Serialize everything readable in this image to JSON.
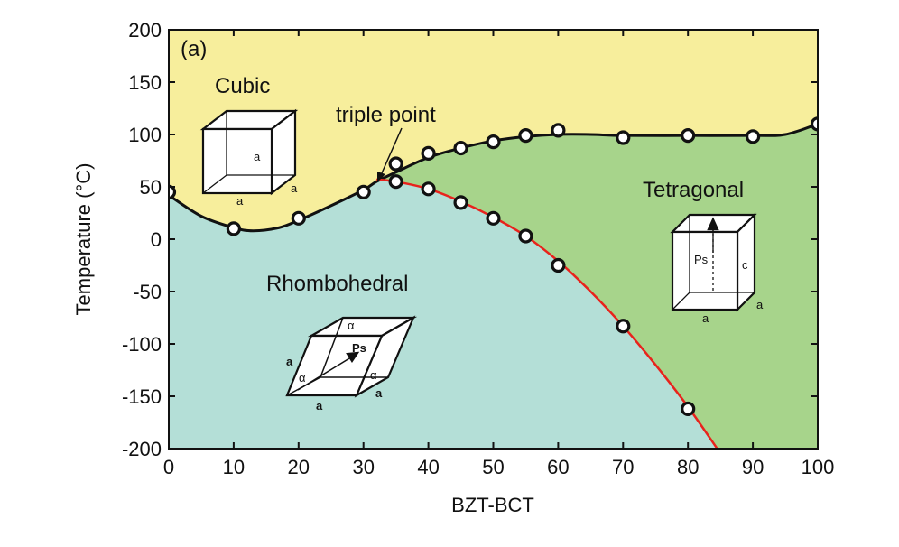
{
  "chart_data": {
    "type": "line",
    "panel_label": "(a)",
    "xlabel": "BZT-BCT",
    "ylabel": "Temperature (°C)",
    "xlim": [
      0,
      100
    ],
    "ylim": [
      -200,
      200
    ],
    "xticks": [
      0,
      10,
      20,
      30,
      40,
      50,
      60,
      70,
      80,
      90,
      100
    ],
    "yticks": [
      200,
      150,
      100,
      50,
      0,
      -50,
      -100,
      -150,
      -200
    ],
    "grid": false,
    "colors": {
      "cubic": "#f7ee9c",
      "rhombohedral": "#b4dfd7",
      "tetragonal": "#a7d48b",
      "cubic_boundary": "#111111",
      "rt_boundary": "#e8231c"
    },
    "regions": [
      {
        "name": "Cubic",
        "cell": {
          "edge_labels": [
            "a",
            "a",
            "a"
          ]
        }
      },
      {
        "name": "Rhombohedral",
        "cell": {
          "edge_labels": [
            "a",
            "a",
            "a"
          ],
          "angle_label": "α",
          "polarization": "Ps"
        }
      },
      {
        "name": "Tetragonal",
        "cell": {
          "edge_labels": [
            "a",
            "a",
            "c"
          ],
          "polarization": "Ps"
        }
      }
    ],
    "annotation": {
      "text": "triple point",
      "x": 32,
      "y": 55
    },
    "series": [
      {
        "name": "Cubic boundary (measured)",
        "x": [
          0,
          10,
          20,
          30,
          35,
          40,
          45,
          50,
          55,
          60,
          70,
          80,
          90,
          100
        ],
        "y": [
          45,
          10,
          20,
          45,
          72,
          82,
          87,
          93,
          99,
          104,
          97,
          99,
          98,
          110
        ]
      },
      {
        "name": "R-T boundary (measured)",
        "x": [
          35,
          40,
          45,
          50,
          55,
          60,
          70,
          80
        ],
        "y": [
          55,
          48,
          35,
          20,
          3,
          -25,
          -83,
          -162
        ]
      }
    ],
    "fit_curves": [
      {
        "name": "Cubic boundary fit",
        "x": [
          0,
          5,
          10,
          13,
          17,
          20,
          25,
          30,
          32,
          35,
          40,
          45,
          50,
          55,
          60,
          65,
          70,
          80,
          90,
          95,
          100
        ],
        "y": [
          42,
          22,
          11,
          8,
          11,
          18,
          32,
          47,
          55,
          64,
          78,
          87,
          94,
          98,
          100,
          100,
          99,
          99,
          99,
          100,
          110
        ]
      },
      {
        "name": "R-T boundary fit",
        "x": [
          32,
          35,
          40,
          45,
          50,
          55,
          60,
          65,
          70,
          75,
          80,
          84.5
        ],
        "y": [
          57,
          55,
          48,
          36,
          21,
          3,
          -21,
          -50,
          -83,
          -120,
          -160,
          -200
        ]
      }
    ]
  }
}
